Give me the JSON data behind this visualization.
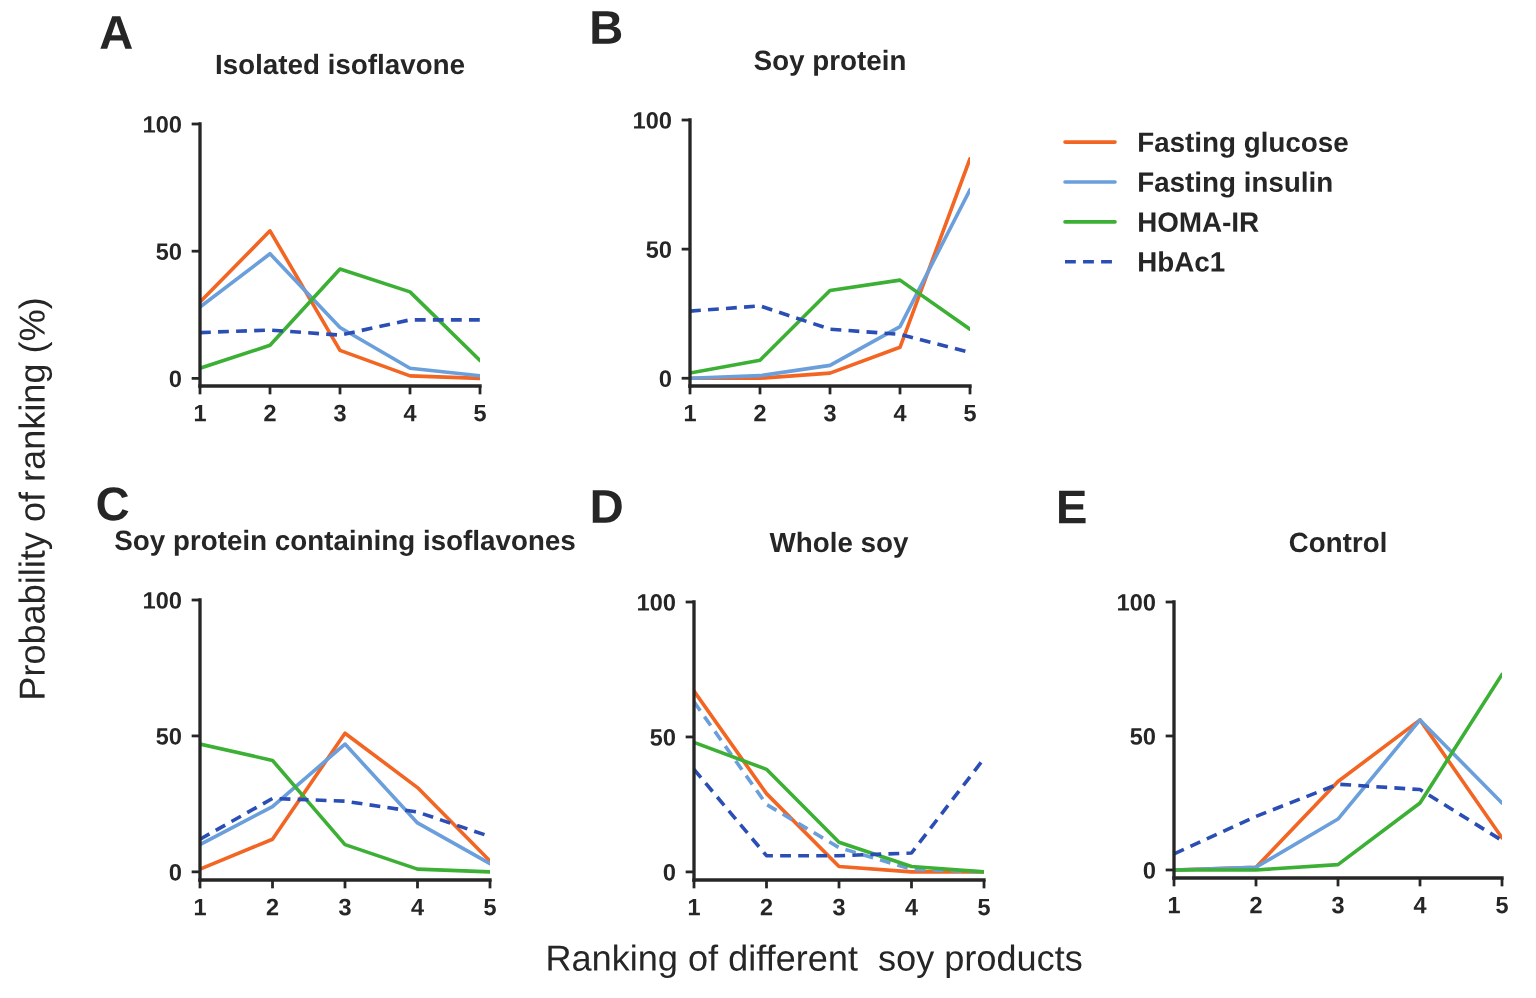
{
  "chart_data": [
    {
      "type": "line",
      "title": "Isolated isoflavone",
      "annotations": [
        "A"
      ],
      "ylabel": "Probability of ranking (%)",
      "x": [
        1,
        2,
        3,
        4,
        5
      ],
      "xlim": [
        1,
        5
      ],
      "xticks": [
        1,
        2,
        3,
        4,
        5
      ],
      "ylim": [
        -3,
        100
      ],
      "yticks": [
        0,
        50,
        100
      ],
      "grid": false,
      "series": [
        {
          "color": "#f26522",
          "values": [
            30,
            58,
            11,
            1,
            0
          ]
        },
        {
          "color": "#6a9fdc",
          "values": [
            28,
            49,
            20,
            4,
            1
          ]
        },
        {
          "color": "#3cb034",
          "values": [
            4,
            13,
            43,
            34,
            7
          ]
        },
        {
          "color": "#2b4eb5",
          "line_style": "dashed",
          "values": [
            18,
            19,
            17,
            23,
            23
          ]
        }
      ]
    },
    {
      "type": "line",
      "title": "Soy protein",
      "annotations": [
        "B"
      ],
      "x": [
        1,
        2,
        3,
        4,
        5
      ],
      "xlim": [
        1,
        5
      ],
      "xticks": [
        1,
        2,
        3,
        4,
        5
      ],
      "ylim": [
        -3,
        100
      ],
      "yticks": [
        0,
        50,
        100
      ],
      "grid": false,
      "legend": "right",
      "series": [
        {
          "name": "Fasting glucose",
          "color": "#f26522",
          "values": [
            0,
            0,
            2,
            12,
            85
          ]
        },
        {
          "name": "Fasting insulin",
          "color": "#6a9fdc",
          "values": [
            0,
            1,
            5,
            20,
            73
          ]
        },
        {
          "name": "HOMA-IR",
          "color": "#3cb034",
          "values": [
            2,
            7,
            34,
            38,
            19
          ]
        },
        {
          "name": "HbAc1",
          "color": "#2b4eb5",
          "line_style": "dashed",
          "values": [
            26,
            28,
            19,
            17,
            10
          ]
        }
      ]
    },
    {
      "type": "line",
      "title": "Soy protein containing isoflavones",
      "annotations": [
        "C"
      ],
      "x": [
        1,
        2,
        3,
        4,
        5
      ],
      "xlim": [
        1,
        5
      ],
      "xticks": [
        1,
        2,
        3,
        4,
        5
      ],
      "ylim": [
        -3,
        100
      ],
      "yticks": [
        0,
        50,
        100
      ],
      "grid": false,
      "series": [
        {
          "color": "#f26522",
          "values": [
            1,
            12,
            51,
            31,
            4
          ]
        },
        {
          "color": "#6a9fdc",
          "values": [
            10,
            24,
            47,
            18,
            3
          ]
        },
        {
          "color": "#3cb034",
          "values": [
            47,
            41,
            10,
            1,
            0
          ]
        },
        {
          "color": "#2b4eb5",
          "line_style": "dashed",
          "values": [
            12,
            27,
            26,
            22,
            13
          ]
        }
      ]
    },
    {
      "type": "line",
      "title": "Whole soy",
      "annotations": [
        "D"
      ],
      "xlabel": "Ranking of different  soy products",
      "x": [
        1,
        2,
        3,
        4,
        5
      ],
      "xlim": [
        1,
        5
      ],
      "xticks": [
        1,
        2,
        3,
        4,
        5
      ],
      "ylim": [
        -3,
        100
      ],
      "yticks": [
        0,
        50,
        100
      ],
      "grid": false,
      "series": [
        {
          "color": "#f26522",
          "values": [
            67,
            29,
            2,
            0,
            0
          ]
        },
        {
          "color": "#6a9fdc",
          "line_style": "dashed",
          "values": [
            63,
            25,
            9,
            1,
            0
          ]
        },
        {
          "color": "#3cb034",
          "values": [
            48,
            38,
            11,
            2,
            0
          ]
        },
        {
          "color": "#2b4eb5",
          "line_style": "dashed",
          "values": [
            38,
            6,
            6,
            7,
            42
          ]
        }
      ]
    },
    {
      "type": "line",
      "title": "Control",
      "annotations": [
        "E"
      ],
      "x": [
        1,
        2,
        3,
        4,
        5
      ],
      "xlim": [
        1,
        5
      ],
      "xticks": [
        1,
        2,
        3,
        4,
        5
      ],
      "ylim": [
        -3,
        100
      ],
      "yticks": [
        0,
        50,
        100
      ],
      "grid": false,
      "series": [
        {
          "color": "#f26522",
          "values": [
            0,
            1,
            33,
            56,
            12
          ]
        },
        {
          "color": "#6a9fdc",
          "values": [
            0,
            1,
            19,
            56,
            25
          ]
        },
        {
          "color": "#3cb034",
          "values": [
            0,
            0,
            2,
            25,
            73
          ]
        },
        {
          "color": "#2b4eb5",
          "line_style": "dashed",
          "values": [
            6,
            20,
            32,
            30,
            11
          ]
        }
      ]
    }
  ]
}
